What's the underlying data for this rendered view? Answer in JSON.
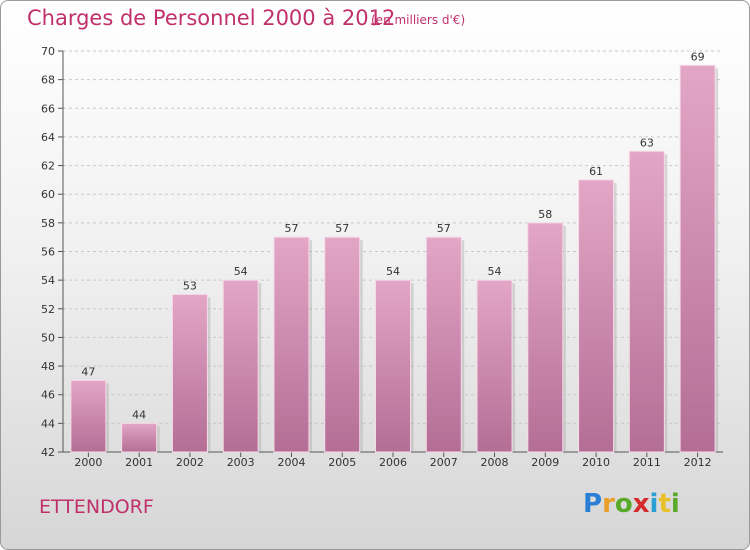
{
  "chart_data": {
    "type": "bar",
    "title": "Charges de Personnel 2000 à 2012",
    "subtitle": "(en milliers d'€)",
    "categories": [
      "2000",
      "2001",
      "2002",
      "2003",
      "2004",
      "2005",
      "2006",
      "2007",
      "2008",
      "2009",
      "2010",
      "2011",
      "2012"
    ],
    "values": [
      47,
      44,
      53,
      54,
      57,
      57,
      54,
      57,
      54,
      58,
      61,
      63,
      69
    ],
    "ylim": [
      42,
      70
    ],
    "yticks": [
      42,
      44,
      46,
      48,
      50,
      52,
      54,
      56,
      58,
      60,
      62,
      64,
      66,
      68,
      70
    ],
    "grid": true,
    "bar_color": "#cc88aa"
  },
  "commune": "ETTENDORF",
  "logo": {
    "letters": [
      "P",
      "r",
      "o",
      "x",
      "i",
      "t",
      "i"
    ],
    "colors": [
      "#2a7fd4",
      "#e8a02a",
      "#5aaa2a",
      "#d42a2a",
      "#2a9fd4",
      "#e8c02a",
      "#5aaa2a"
    ]
  }
}
